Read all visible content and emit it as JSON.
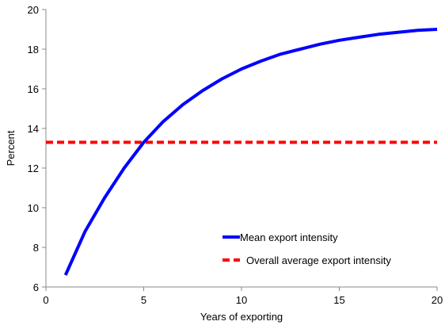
{
  "chart_data": {
    "type": "line",
    "title": "",
    "xlabel": "Years of exporting",
    "ylabel": "Percent",
    "xlim": [
      0,
      20
    ],
    "ylim": [
      6,
      20
    ],
    "x_ticks": [
      0,
      5,
      10,
      15,
      20
    ],
    "y_ticks": [
      6,
      8,
      10,
      12,
      14,
      16,
      18,
      20
    ],
    "grid": false,
    "legend_position": "bottom-right",
    "series": [
      {
        "name": "Mean export intensity",
        "color": "#0000ff",
        "style": "solid",
        "x": [
          1,
          2,
          3,
          4,
          5,
          6,
          7,
          8,
          9,
          10,
          11,
          12,
          13,
          14,
          15,
          16,
          17,
          18,
          19,
          20
        ],
        "y": [
          6.6,
          8.8,
          10.5,
          12.0,
          13.3,
          14.35,
          15.2,
          15.9,
          16.5,
          17.0,
          17.4,
          17.75,
          18.0,
          18.25,
          18.45,
          18.6,
          18.75,
          18.85,
          18.95,
          19.0
        ]
      },
      {
        "name": "Overall average export intensity",
        "color": "#ff0000",
        "style": "dashed",
        "x": [
          0,
          20
        ],
        "y": [
          13.3,
          13.3
        ]
      }
    ]
  }
}
